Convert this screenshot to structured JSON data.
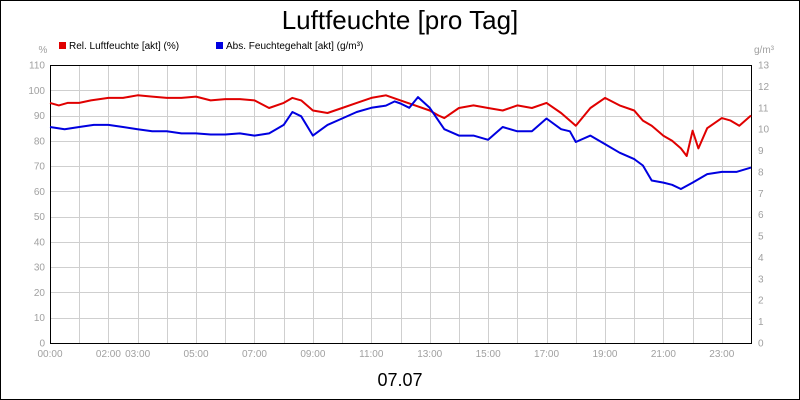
{
  "chart_data": {
    "type": "line",
    "title": "Luftfeuchte [pro Tag]",
    "xlabel": "07.07",
    "y_left_unit": "%",
    "y_right_unit": "g/m³",
    "x_range": [
      0,
      24
    ],
    "ylim": [
      0,
      110
    ],
    "y2lim": [
      0,
      13
    ],
    "y_ticks": [
      0,
      10,
      20,
      30,
      40,
      50,
      60,
      70,
      80,
      90,
      100,
      110
    ],
    "y2_ticks": [
      0,
      1,
      2,
      3,
      4,
      5,
      6,
      7,
      8,
      9,
      10,
      11,
      12,
      13
    ],
    "x_ticks": [
      {
        "hour": 0,
        "label": "00:00"
      },
      {
        "hour": 2,
        "label": "02:00"
      },
      {
        "hour": 3,
        "label": "03:00"
      },
      {
        "hour": 5,
        "label": "05:00"
      },
      {
        "hour": 7,
        "label": "07:00"
      },
      {
        "hour": 9,
        "label": "09:00"
      },
      {
        "hour": 11,
        "label": "11:00"
      },
      {
        "hour": 13,
        "label": "13:00"
      },
      {
        "hour": 15,
        "label": "15:00"
      },
      {
        "hour": 17,
        "label": "17:00"
      },
      {
        "hour": 19,
        "label": "19:00"
      },
      {
        "hour": 21,
        "label": "21:00"
      },
      {
        "hour": 23,
        "label": "23:00"
      }
    ],
    "grid": true,
    "legend_position": "top-left",
    "series": [
      {
        "name": "Rel. Luftfeuchte [akt] (%)",
        "color": "#e00000",
        "axis": "left",
        "x": [
          0,
          0.3,
          0.6,
          1.0,
          1.4,
          2.0,
          2.5,
          3.0,
          3.5,
          4.0,
          4.5,
          5.0,
          5.5,
          6.0,
          6.5,
          7.0,
          7.5,
          8.0,
          8.3,
          8.6,
          9.0,
          9.5,
          10.0,
          10.5,
          11.0,
          11.5,
          12.0,
          12.5,
          13.0,
          13.3,
          13.5,
          14.0,
          14.5,
          15.0,
          15.5,
          16.0,
          16.5,
          17.0,
          17.5,
          17.8,
          18.0,
          18.5,
          19.0,
          19.5,
          20.0,
          20.3,
          20.6,
          21.0,
          21.3,
          21.6,
          21.8,
          22.0,
          22.2,
          22.5,
          23.0,
          23.3,
          23.6,
          24.0
        ],
        "y": [
          95,
          94,
          95,
          95,
          96,
          97,
          97,
          98,
          97.5,
          97,
          97,
          97.5,
          96,
          96.5,
          96.5,
          96,
          93,
          95,
          97,
          96,
          92,
          91,
          93,
          95,
          97,
          98,
          96,
          94,
          92,
          90,
          89,
          93,
          94,
          93,
          92,
          94,
          93,
          95,
          91,
          88,
          86,
          93,
          97,
          94,
          92,
          88,
          86,
          82,
          80,
          77,
          74,
          84,
          77,
          85,
          89,
          88,
          86,
          90
        ]
      },
      {
        "name": "Abs. Feuchtegehalt [akt] (g/m³)",
        "color": "#0000e0",
        "axis": "right",
        "x": [
          0,
          0.5,
          1.0,
          1.5,
          2.0,
          2.5,
          3.0,
          3.5,
          4.0,
          4.5,
          5.0,
          5.5,
          6.0,
          6.5,
          7.0,
          7.5,
          8.0,
          8.3,
          8.6,
          9.0,
          9.5,
          10.0,
          10.5,
          11.0,
          11.5,
          11.8,
          12.0,
          12.3,
          12.6,
          13.0,
          13.5,
          14.0,
          14.5,
          15.0,
          15.5,
          16.0,
          16.5,
          17.0,
          17.5,
          17.8,
          18.0,
          18.5,
          19.0,
          19.5,
          20.0,
          20.3,
          20.6,
          21.0,
          21.3,
          21.6,
          22.0,
          22.5,
          23.0,
          23.5,
          24.0
        ],
        "y": [
          10.1,
          10.0,
          10.1,
          10.2,
          10.2,
          10.1,
          10.0,
          9.9,
          9.9,
          9.8,
          9.8,
          9.75,
          9.75,
          9.8,
          9.7,
          9.8,
          10.2,
          10.8,
          10.6,
          9.7,
          10.2,
          10.5,
          10.8,
          11.0,
          11.1,
          11.3,
          11.2,
          11.0,
          11.5,
          11.0,
          10.0,
          9.7,
          9.7,
          9.5,
          10.1,
          9.9,
          9.9,
          10.5,
          10.0,
          9.9,
          9.4,
          9.7,
          9.3,
          8.9,
          8.6,
          8.3,
          7.6,
          7.5,
          7.4,
          7.2,
          7.5,
          7.9,
          8.0,
          8.0,
          8.2
        ]
      }
    ]
  }
}
